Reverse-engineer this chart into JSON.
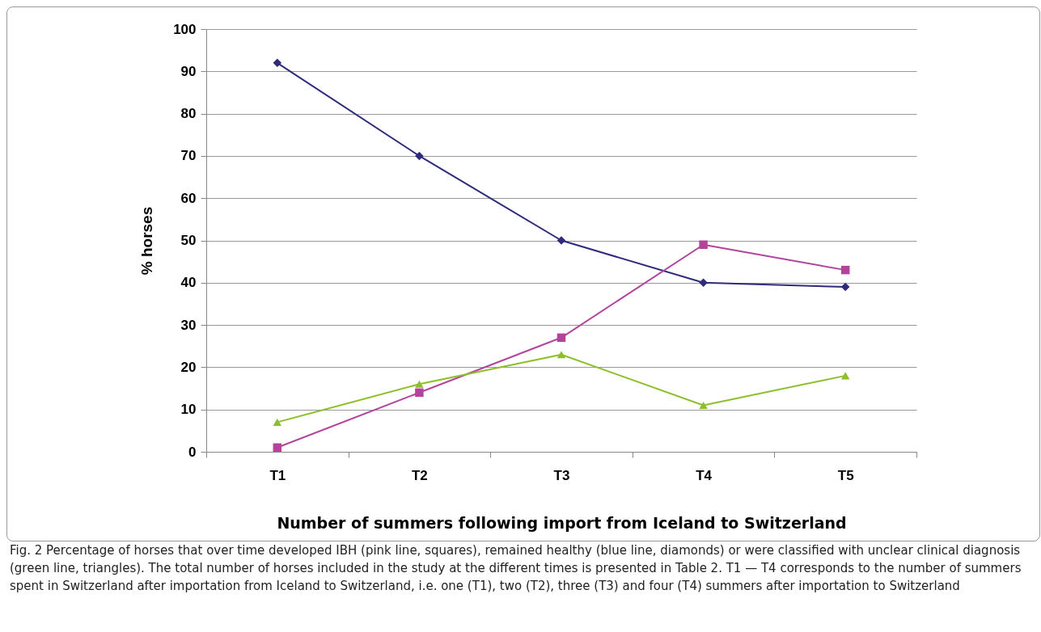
{
  "chart_data": {
    "type": "line",
    "xlabel": "Number of summers following import from Iceland to Switzerland",
    "ylabel": "% horses",
    "categories": [
      "T1",
      "T2",
      "T3",
      "T4",
      "T5"
    ],
    "series": [
      {
        "color": "#2e2a7c",
        "marker": "diamond",
        "values": [
          92,
          70,
          50,
          40,
          39
        ]
      },
      {
        "color": "#b2449c",
        "marker": "square",
        "values": [
          1,
          14,
          27,
          49,
          43
        ]
      },
      {
        "color": "#8dbf2a",
        "marker": "triangle",
        "values": [
          7,
          16,
          23,
          11,
          18
        ]
      }
    ],
    "ylim": [
      0,
      100
    ],
    "yticks": [
      0,
      10,
      20,
      30,
      40,
      50,
      60,
      70,
      80,
      90,
      100
    ],
    "grid": "y",
    "annotations": [
      "Fig. 2  Percentage of horses that over time developed IBH (pink line, squares), remained healthy (blue line, diamonds) or were classified with unclear clinical diagnosis (green line, triangles). The total number of horses included in the study at the different times is presented in Table 2. T1 — T4 corresponds to the number of summers spent in Switzerland after importation from Iceland to Switzerland, i.e. one (T1), two (T2), three (T3) and four (T4) summers after importation to Switzerland"
    ]
  }
}
